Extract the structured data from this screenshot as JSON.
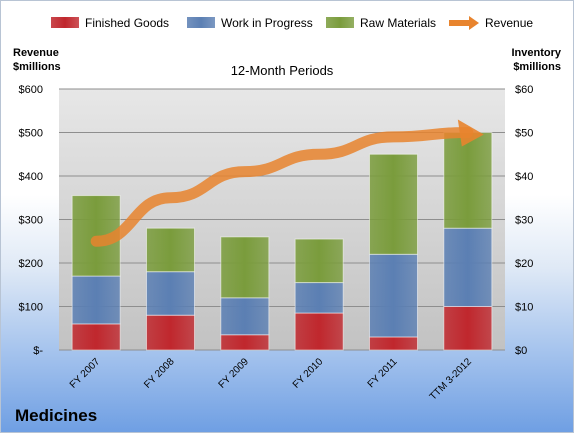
{
  "chart_data": {
    "type": "bar",
    "stacked": true,
    "title": "12-Month Periods",
    "footer_title": "Medicines",
    "categories": [
      "FY 2007",
      "FY 2008",
      "FY 2009",
      "FY 2010",
      "FY 2011",
      "TTM 3-2012"
    ],
    "series": [
      {
        "name": "Finished Goods",
        "axis": "right",
        "color": "#c0272d",
        "values": [
          6,
          8,
          3.5,
          8.5,
          3,
          10
        ]
      },
      {
        "name": "Work in Progress",
        "axis": "right",
        "color": "#5b7fb3",
        "values": [
          11,
          10,
          8.5,
          7,
          19,
          18
        ]
      },
      {
        "name": "Raw Materials",
        "axis": "right",
        "color": "#7a9c3c",
        "values": [
          18.5,
          10,
          14,
          10,
          23,
          22
        ]
      },
      {
        "name": "Revenue",
        "axis": "left",
        "type": "line",
        "color": "#e8842e",
        "values": [
          250,
          350,
          410,
          450,
          490,
          500
        ]
      }
    ],
    "y_left": {
      "label": "Revenue $millions",
      "min": 0,
      "max": 600,
      "ticks": [
        {
          "v": 0,
          "t": "$-"
        },
        {
          "v": 100,
          "t": "$100"
        },
        {
          "v": 200,
          "t": "$200"
        },
        {
          "v": 300,
          "t": "$300"
        },
        {
          "v": 400,
          "t": "$400"
        },
        {
          "v": 500,
          "t": "$500"
        },
        {
          "v": 600,
          "t": "$600"
        }
      ]
    },
    "y_right": {
      "label": "Inventory $millions",
      "min": 0,
      "max": 60,
      "ticks": [
        {
          "v": 0,
          "t": "$0"
        },
        {
          "v": 10,
          "t": "$10"
        },
        {
          "v": 20,
          "t": "$20"
        },
        {
          "v": 30,
          "t": "$30"
        },
        {
          "v": 40,
          "t": "$40"
        },
        {
          "v": 50,
          "t": "$50"
        },
        {
          "v": 60,
          "t": "$60"
        }
      ]
    },
    "grid": true,
    "legend_position": "top"
  }
}
